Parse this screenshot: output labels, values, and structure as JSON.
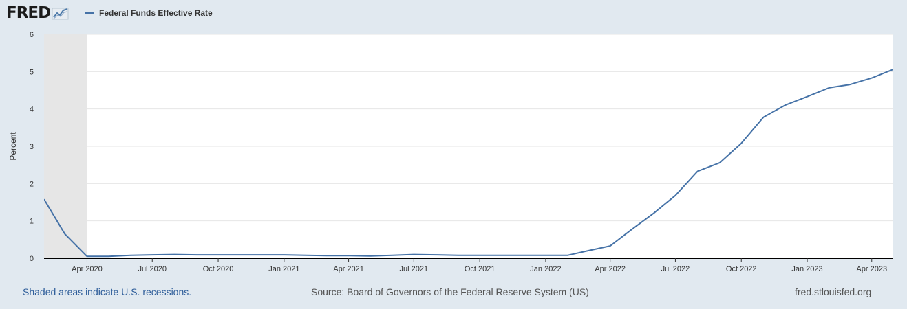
{
  "header": {
    "logo_text": "FRED",
    "logo_mark": "chart-line-icon"
  },
  "chart_data": {
    "type": "line",
    "title": "",
    "xlabel": "",
    "ylabel": "Percent",
    "ylim": [
      0,
      6
    ],
    "yticks": [
      "0",
      "1",
      "2",
      "3",
      "4",
      "5",
      "6"
    ],
    "xlim": [
      "2020-02-01",
      "2023-05-01"
    ],
    "xticks": [
      {
        "date": "2020-04-01",
        "label": "Apr 2020"
      },
      {
        "date": "2020-07-01",
        "label": "Jul 2020"
      },
      {
        "date": "2020-10-01",
        "label": "Oct 2020"
      },
      {
        "date": "2021-01-01",
        "label": "Jan 2021"
      },
      {
        "date": "2021-04-01",
        "label": "Apr 2021"
      },
      {
        "date": "2021-07-01",
        "label": "Jul 2021"
      },
      {
        "date": "2021-10-01",
        "label": "Oct 2021"
      },
      {
        "date": "2022-01-01",
        "label": "Jan 2022"
      },
      {
        "date": "2022-04-01",
        "label": "Apr 2022"
      },
      {
        "date": "2022-07-01",
        "label": "Jul 2022"
      },
      {
        "date": "2022-10-01",
        "label": "Oct 2022"
      },
      {
        "date": "2023-01-01",
        "label": "Jan 2023"
      },
      {
        "date": "2023-04-01",
        "label": "Apr 2023"
      }
    ],
    "grid": true,
    "legend": "top-left",
    "recessions": [
      {
        "start": "2020-02-01",
        "end": "2020-04-01"
      }
    ],
    "series": [
      {
        "name": "Federal Funds Effective Rate",
        "color": "#4572a7",
        "x": [
          "2020-02-01",
          "2020-03-01",
          "2020-04-01",
          "2020-05-01",
          "2020-06-01",
          "2020-07-01",
          "2020-08-01",
          "2020-09-01",
          "2020-10-01",
          "2020-11-01",
          "2020-12-01",
          "2021-01-01",
          "2021-02-01",
          "2021-03-01",
          "2021-04-01",
          "2021-05-01",
          "2021-06-01",
          "2021-07-01",
          "2021-08-01",
          "2021-09-01",
          "2021-10-01",
          "2021-11-01",
          "2021-12-01",
          "2022-01-01",
          "2022-02-01",
          "2022-03-01",
          "2022-04-01",
          "2022-05-01",
          "2022-06-01",
          "2022-07-01",
          "2022-08-01",
          "2022-09-01",
          "2022-10-01",
          "2022-11-01",
          "2022-12-01",
          "2023-01-01",
          "2023-02-01",
          "2023-03-01",
          "2023-04-01",
          "2023-05-01"
        ],
        "values": [
          1.58,
          0.65,
          0.05,
          0.05,
          0.08,
          0.09,
          0.1,
          0.09,
          0.09,
          0.09,
          0.09,
          0.09,
          0.08,
          0.07,
          0.07,
          0.06,
          0.08,
          0.1,
          0.09,
          0.08,
          0.08,
          0.08,
          0.08,
          0.08,
          0.08,
          0.2,
          0.33,
          0.77,
          1.21,
          1.68,
          2.33,
          2.56,
          3.08,
          3.78,
          4.1,
          4.33,
          4.57,
          4.65,
          4.83,
          5.06
        ]
      }
    ]
  },
  "footer": {
    "recession_note": "Shaded areas indicate U.S. recessions.",
    "source": "Source: Board of Governors of the Federal Reserve System (US)",
    "site": "fred.stlouisfed.org"
  }
}
